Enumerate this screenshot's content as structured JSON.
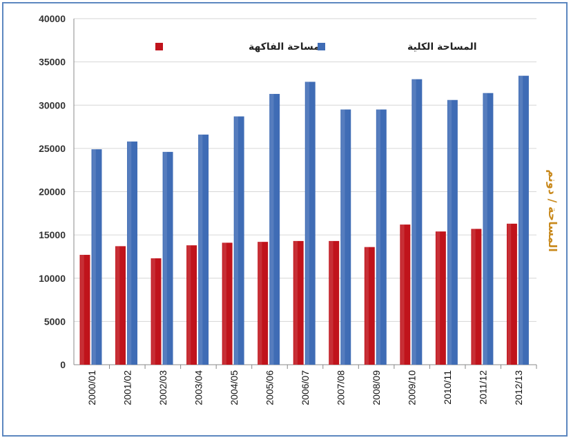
{
  "chart_data": {
    "type": "bar",
    "categories": [
      "2000/01",
      "2001/02",
      "2002/03",
      "2003/04",
      "2004/05",
      "2005/06",
      "2006/07",
      "2007/08",
      "2008/09",
      "2009/10",
      "2010/11",
      "2011/12",
      "2012/13"
    ],
    "series": [
      {
        "name": "مساحة الفاكهة",
        "color": "#c0131b",
        "values": [
          12700,
          13700,
          12300,
          13800,
          14100,
          14200,
          14300,
          14300,
          13600,
          16200,
          15400,
          15700,
          16300
        ]
      },
      {
        "name": "المساحة الكلية",
        "color": "#3f6cb5",
        "values": [
          24900,
          25800,
          24600,
          26600,
          28700,
          31300,
          32700,
          29500,
          29500,
          33000,
          30600,
          31400,
          33400
        ]
      }
    ],
    "ylim": [
      0,
      40000
    ],
    "yticks": [
      0,
      5000,
      10000,
      15000,
      20000,
      25000,
      30000,
      35000,
      40000
    ],
    "ylabel": "المساحة / دونم",
    "xlabel": "",
    "title": "",
    "grid": true,
    "legend_position": "top"
  }
}
